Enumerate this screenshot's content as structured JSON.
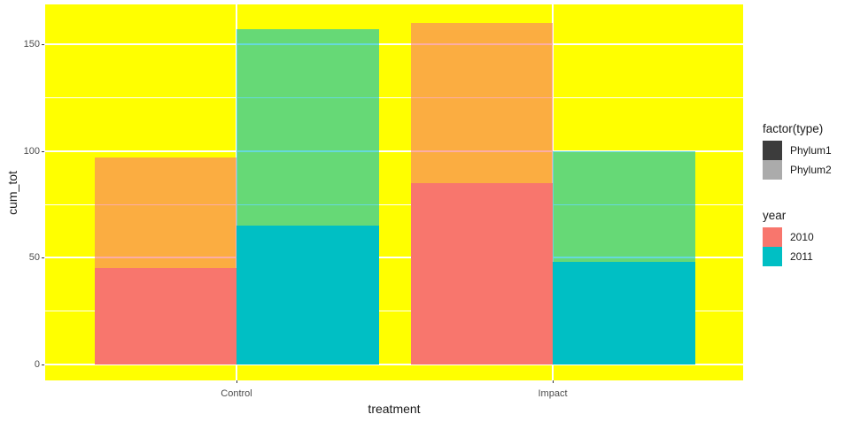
{
  "figure": {
    "background": "#FFFFFF",
    "panel_background": "#FFFF00",
    "gridline_color": "#FFFFFF"
  },
  "axes": {
    "x_title": "treatment",
    "y_title": "cum_tot",
    "x_tick_labels": [
      "Control",
      "Impact"
    ],
    "y_tick_labels": [
      "0",
      "50",
      "100",
      "150"
    ]
  },
  "chart_data": {
    "type": "bar",
    "variant": "dodged bars by year; opaque Phylum1 segment with semi-transparent Phylum2 total overlay",
    "title": "",
    "xlabel": "treatment",
    "ylabel": "cum_tot",
    "categories": [
      "Control",
      "Impact"
    ],
    "group_variable": "year",
    "groups": [
      "2010",
      "2011"
    ],
    "ylim": [
      0,
      160
    ],
    "yticks": [
      0,
      50,
      100,
      150
    ],
    "minor_yticks": [
      25,
      75,
      125
    ],
    "grid": true,
    "legend_position": "right",
    "panel_background": "#FFFF00",
    "year_colors": {
      "2010": "#F8766D",
      "2011": "#00BFC4"
    },
    "overlay_alpha": 0.6,
    "bars": [
      {
        "category": "Control",
        "year": "2010",
        "phylum1": 45,
        "phylum2": 52,
        "cum_tot_total": 97
      },
      {
        "category": "Control",
        "year": "2011",
        "phylum1": 65,
        "phylum2": 92,
        "cum_tot_total": 157
      },
      {
        "category": "Impact",
        "year": "2010",
        "phylum1": 85,
        "phylum2": 75,
        "cum_tot_total": 160
      },
      {
        "category": "Impact",
        "year": "2011",
        "phylum1": 48,
        "phylum2": 52,
        "cum_tot_total": 100
      }
    ]
  },
  "legends": [
    {
      "title": "factor(type)",
      "items": [
        {
          "label": "Phylum1",
          "color": "#3C3C3C"
        },
        {
          "label": "Phylum2",
          "color": "#ABABAB"
        }
      ]
    },
    {
      "title": "year",
      "items": [
        {
          "label": "2010",
          "color": "#F8766D"
        },
        {
          "label": "2011",
          "color": "#00BFC4"
        }
      ]
    }
  ]
}
